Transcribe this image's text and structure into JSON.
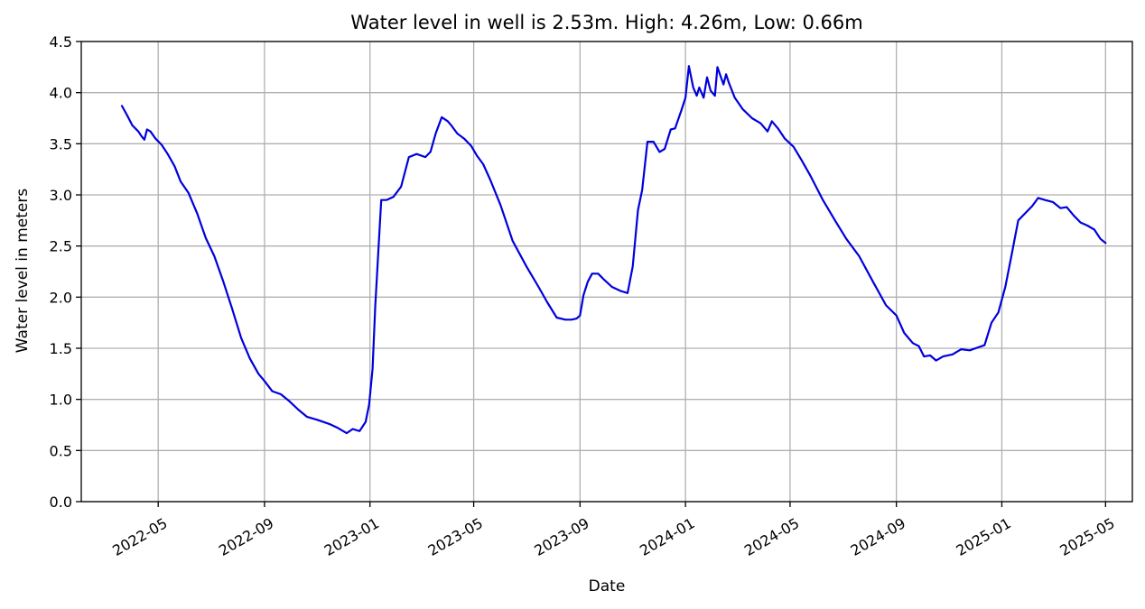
{
  "chart_data": {
    "type": "line",
    "title": "Water level in well is 2.53m. High: 4.26m, Low: 0.66m",
    "xlabel": "Date",
    "ylabel": "Water level in meters",
    "ylim": [
      0,
      4.5
    ],
    "xlim": [
      "2022-02-01",
      "2025-06-01"
    ],
    "grid": true,
    "line_color": "#0000dd",
    "y_ticks": [
      {
        "value": 0.0,
        "label": "0.0"
      },
      {
        "value": 0.5,
        "label": "0.5"
      },
      {
        "value": 1.0,
        "label": "1.0"
      },
      {
        "value": 1.5,
        "label": "1.5"
      },
      {
        "value": 2.0,
        "label": "2.0"
      },
      {
        "value": 2.5,
        "label": "2.5"
      },
      {
        "value": 3.0,
        "label": "3.0"
      },
      {
        "value": 3.5,
        "label": "3.5"
      },
      {
        "value": 4.0,
        "label": "4.0"
      },
      {
        "value": 4.5,
        "label": "4.5"
      }
    ],
    "x_ticks": [
      {
        "date": "2022-05-01",
        "label": "2022-05"
      },
      {
        "date": "2022-09-01",
        "label": "2022-09"
      },
      {
        "date": "2023-01-01",
        "label": "2023-01"
      },
      {
        "date": "2023-05-01",
        "label": "2023-05"
      },
      {
        "date": "2023-09-01",
        "label": "2023-09"
      },
      {
        "date": "2024-01-01",
        "label": "2024-01"
      },
      {
        "date": "2024-05-01",
        "label": "2024-05"
      },
      {
        "date": "2024-09-01",
        "label": "2024-09"
      },
      {
        "date": "2025-01-01",
        "label": "2025-01"
      },
      {
        "date": "2025-05-01",
        "label": "2025-05"
      }
    ],
    "series": [
      {
        "x": [
          "2022-03-20",
          "2022-03-26",
          "2022-04-01",
          "2022-04-08",
          "2022-04-12",
          "2022-04-15",
          "2022-04-18",
          "2022-04-22",
          "2022-04-28",
          "2022-05-05",
          "2022-05-12",
          "2022-05-20",
          "2022-05-27",
          "2022-06-05",
          "2022-06-15",
          "2022-06-25",
          "2022-07-05",
          "2022-07-15",
          "2022-07-25",
          "2022-08-05",
          "2022-08-15",
          "2022-08-25",
          "2022-09-01",
          "2022-09-10",
          "2022-09-20",
          "2022-09-30",
          "2022-10-10",
          "2022-10-20",
          "2022-11-01",
          "2022-11-15",
          "2022-11-25",
          "2022-12-05",
          "2022-12-12",
          "2022-12-20",
          "2022-12-27",
          "2022-12-31",
          "2023-01-04",
          "2023-01-07",
          "2023-01-11",
          "2023-01-14",
          "2023-01-20",
          "2023-01-28",
          "2023-02-06",
          "2023-02-15",
          "2023-02-24",
          "2023-03-06",
          "2023-03-12",
          "2023-03-18",
          "2023-03-25",
          "2023-04-01",
          "2023-04-05",
          "2023-04-12",
          "2023-04-20",
          "2023-04-28",
          "2023-05-05",
          "2023-05-12",
          "2023-05-20",
          "2023-06-01",
          "2023-06-15",
          "2023-07-01",
          "2023-07-15",
          "2023-07-25",
          "2023-08-05",
          "2023-08-15",
          "2023-08-22",
          "2023-08-28",
          "2023-09-01",
          "2023-09-05",
          "2023-09-10",
          "2023-09-15",
          "2023-09-22",
          "2023-09-29",
          "2023-10-08",
          "2023-10-18",
          "2023-10-26",
          "2023-11-01",
          "2023-11-07",
          "2023-11-12",
          "2023-11-18",
          "2023-11-25",
          "2023-12-02",
          "2023-12-08",
          "2023-12-15",
          "2023-12-20",
          "2023-12-27",
          "2024-01-01",
          "2024-01-05",
          "2024-01-10",
          "2024-01-14",
          "2024-01-17",
          "2024-01-22",
          "2024-01-26",
          "2024-01-30",
          "2024-02-04",
          "2024-02-07",
          "2024-02-11",
          "2024-02-14",
          "2024-02-17",
          "2024-02-20",
          "2024-02-27",
          "2024-03-07",
          "2024-03-18",
          "2024-03-28",
          "2024-04-05",
          "2024-04-10",
          "2024-04-17",
          "2024-04-25",
          "2024-05-05",
          "2024-05-15",
          "2024-05-25",
          "2024-06-08",
          "2024-06-22",
          "2024-07-05",
          "2024-07-20",
          "2024-08-05",
          "2024-08-20",
          "2024-09-01",
          "2024-09-10",
          "2024-09-20",
          "2024-09-27",
          "2024-10-03",
          "2024-10-10",
          "2024-10-17",
          "2024-10-25",
          "2024-11-05",
          "2024-11-15",
          "2024-11-25",
          "2024-12-05",
          "2024-12-12",
          "2024-12-20",
          "2024-12-28",
          "2025-01-05",
          "2025-01-12",
          "2025-01-20",
          "2025-01-28",
          "2025-02-05",
          "2025-02-12",
          "2025-02-20",
          "2025-03-01",
          "2025-03-10",
          "2025-03-17",
          "2025-03-25",
          "2025-04-02",
          "2025-04-10",
          "2025-04-18",
          "2025-04-25",
          "2025-05-01"
        ],
        "y": [
          3.87,
          3.78,
          3.68,
          3.62,
          3.57,
          3.54,
          3.64,
          3.62,
          3.55,
          3.49,
          3.4,
          3.28,
          3.13,
          3.02,
          2.82,
          2.58,
          2.4,
          2.16,
          1.9,
          1.6,
          1.4,
          1.25,
          1.18,
          1.08,
          1.05,
          0.98,
          0.9,
          0.83,
          0.8,
          0.76,
          0.72,
          0.67,
          0.71,
          0.69,
          0.78,
          0.95,
          1.3,
          1.9,
          2.5,
          2.95,
          2.95,
          2.98,
          3.08,
          3.37,
          3.4,
          3.37,
          3.42,
          3.6,
          3.76,
          3.72,
          3.68,
          3.6,
          3.55,
          3.48,
          3.38,
          3.3,
          3.15,
          2.9,
          2.55,
          2.3,
          2.1,
          1.95,
          1.8,
          1.78,
          1.78,
          1.79,
          1.82,
          2.02,
          2.15,
          2.23,
          2.23,
          2.17,
          2.1,
          2.06,
          2.04,
          2.3,
          2.85,
          3.05,
          3.52,
          3.52,
          3.42,
          3.45,
          3.64,
          3.65,
          3.82,
          3.95,
          4.26,
          4.05,
          3.97,
          4.05,
          3.95,
          4.15,
          4.02,
          3.97,
          4.25,
          4.15,
          4.08,
          4.18,
          4.1,
          3.95,
          3.84,
          3.75,
          3.7,
          3.62,
          3.72,
          3.65,
          3.55,
          3.47,
          3.33,
          3.18,
          2.95,
          2.75,
          2.57,
          2.4,
          2.15,
          1.92,
          1.82,
          1.65,
          1.55,
          1.52,
          1.42,
          1.43,
          1.38,
          1.42,
          1.44,
          1.49,
          1.48,
          1.51,
          1.53,
          1.75,
          1.85,
          2.1,
          2.4,
          2.75,
          2.82,
          2.89,
          2.97,
          2.95,
          2.93,
          2.87,
          2.88,
          2.8,
          2.73,
          2.7,
          2.66,
          2.57,
          2.53
        ]
      }
    ]
  }
}
